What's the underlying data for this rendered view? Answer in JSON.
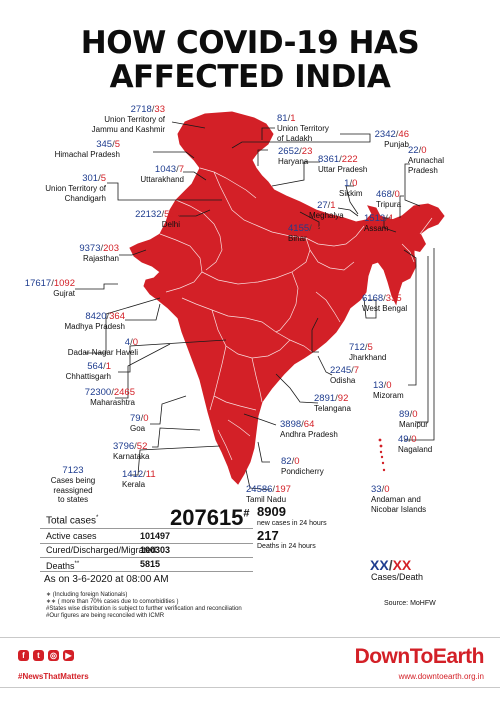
{
  "title": "HOW COVID-19 HAS AFFECTED INDIA",
  "title_lines": [
    "HOW COVID-19 HAS",
    "AFFECTED INDIA"
  ],
  "colors": {
    "map_red": "#d32027",
    "cases_blue": "#1f3d8f",
    "death_red": "#d32027",
    "brand_red": "#d32027"
  },
  "regions": {
    "jk": {
      "cases": "2718",
      "deaths": "33",
      "name1": "Union Territory of",
      "name2": "Jammu and Kashmir"
    },
    "ladakh": {
      "cases": "81",
      "deaths": "1",
      "name1": "Union Territory",
      "name2": "of Ladakh"
    },
    "hp": {
      "cases": "345",
      "deaths": "5",
      "name1": "Himachal Pradesh"
    },
    "punjab": {
      "cases": "2342",
      "deaths": "46",
      "name1": "Punjab"
    },
    "haryana": {
      "cases": "2652",
      "deaths": "23",
      "name1": "Haryana"
    },
    "chandigarh": {
      "cases": "301",
      "deaths": "5",
      "name1": "Union Territory of",
      "name2": "Chandigarh"
    },
    "uttarakhand": {
      "cases": "1043",
      "deaths": "7",
      "name1": "Uttarakhand"
    },
    "up": {
      "cases": "8361",
      "deaths": "222",
      "name1": "Uttar Pradesh"
    },
    "arunachal": {
      "cases": "22",
      "deaths": "0",
      "name1": "Arunachal",
      "name2": "Pradesh"
    },
    "sikkim": {
      "cases": "1",
      "deaths": "0",
      "name1": "Sikkim"
    },
    "tripura": {
      "cases": "468",
      "deaths": "0",
      "name1": "Tripura"
    },
    "meghalaya": {
      "cases": "27",
      "deaths": "1",
      "name1": "Meghalya"
    },
    "delhi": {
      "cases": "22132",
      "deaths": "556",
      "name1": "Delhi"
    },
    "assam": {
      "cases": "1513",
      "deaths": "4",
      "name1": "Assam"
    },
    "bihar": {
      "cases": "4155",
      "deaths": "24",
      "name1": "Bihar"
    },
    "rajasthan": {
      "cases": "9373",
      "deaths": "203",
      "name1": "Rajasthan"
    },
    "gujrat": {
      "cases": "17617",
      "deaths": "1092",
      "name1": "Gujrat"
    },
    "mp": {
      "cases": "8420",
      "deaths": "364",
      "name1": "Madhya Pradesh"
    },
    "wb": {
      "cases": "6168",
      "deaths": "335",
      "name1": "West Bengal"
    },
    "dnh": {
      "cases": "4",
      "deaths": "0",
      "name1": "Dadar Nagar Haveli"
    },
    "jharkhand": {
      "cases": "712",
      "deaths": "5",
      "name1": "Jharkhand"
    },
    "chhattisgarh": {
      "cases": "564",
      "deaths": "1",
      "name1": "Chhattisgarh"
    },
    "odisha": {
      "cases": "2245",
      "deaths": "7",
      "name1": "Odisha"
    },
    "maharashtra": {
      "cases": "72300",
      "deaths": "2465",
      "name1": "Maharashtra"
    },
    "mizoram": {
      "cases": "13",
      "deaths": "0",
      "name1": "Mizoram"
    },
    "telangana": {
      "cases": "2891",
      "deaths": "92",
      "name1": "Telangana"
    },
    "goa": {
      "cases": "79",
      "deaths": "0",
      "name1": "Goa"
    },
    "manipur": {
      "cases": "89",
      "deaths": "0",
      "name1": "Manipur"
    },
    "ap": {
      "cases": "3898",
      "deaths": "64",
      "name1": "Andhra Pradesh"
    },
    "nagaland": {
      "cases": "49",
      "deaths": "0",
      "name1": "Nagaland"
    },
    "karnataka": {
      "cases": "3796",
      "deaths": "52",
      "name1": "Karnataka"
    },
    "pondicherry": {
      "cases": "82",
      "deaths": "0",
      "name1": "Pondicherry"
    },
    "kerala": {
      "cases": "1412",
      "deaths": "11",
      "name1": "Kerala"
    },
    "tn": {
      "cases": "24586",
      "deaths": "197",
      "name1": "Tamil Nadu"
    },
    "andaman": {
      "cases": "33",
      "deaths": "0",
      "name1": "Andaman and",
      "name2": "Nicobar Islands"
    }
  },
  "reassigned": {
    "count": "7123",
    "line1": "Cases being",
    "line2": "reassigned",
    "line3": "to states"
  },
  "totals": {
    "total_label": "Total cases",
    "total_mark": "*",
    "total_value": "207615",
    "total_hash": "#",
    "new_value": "8909",
    "new_label": "new cases in 24 hours",
    "deaths24_value": "217",
    "deaths24_label": "Deaths in 24 hours",
    "active_label": "Active cases",
    "active_value": "101497",
    "cured_label": "Cured/Discharged/Migrated",
    "cured_value": "100303",
    "deaths_label": "Deaths",
    "deaths_mark": "**",
    "deaths_value": "5815",
    "as_on": "As on 3-6-2020 at 08:00 AM"
  },
  "legend": {
    "cases": "XX",
    "sep": "/",
    "deaths": "XX",
    "cases_label": "Cases",
    "deaths_label": "Death"
  },
  "notes": [
    "∗ (Including foreign Nationals)",
    "∗∗ ( more than 70% cases due to comorbidities )",
    "#States wise distribution is subject to further verification and reconciliation",
    "#Our figures are being reconciled with ICMR"
  ],
  "source": "Source: MoHFW",
  "footer": {
    "social_icons": [
      "facebook-icon",
      "twitter-icon",
      "instagram-icon",
      "youtube-icon"
    ],
    "hashtag": "#NewsThatMatters",
    "brand": "DownToEarth",
    "url": "www.downtoearth.org.in"
  }
}
